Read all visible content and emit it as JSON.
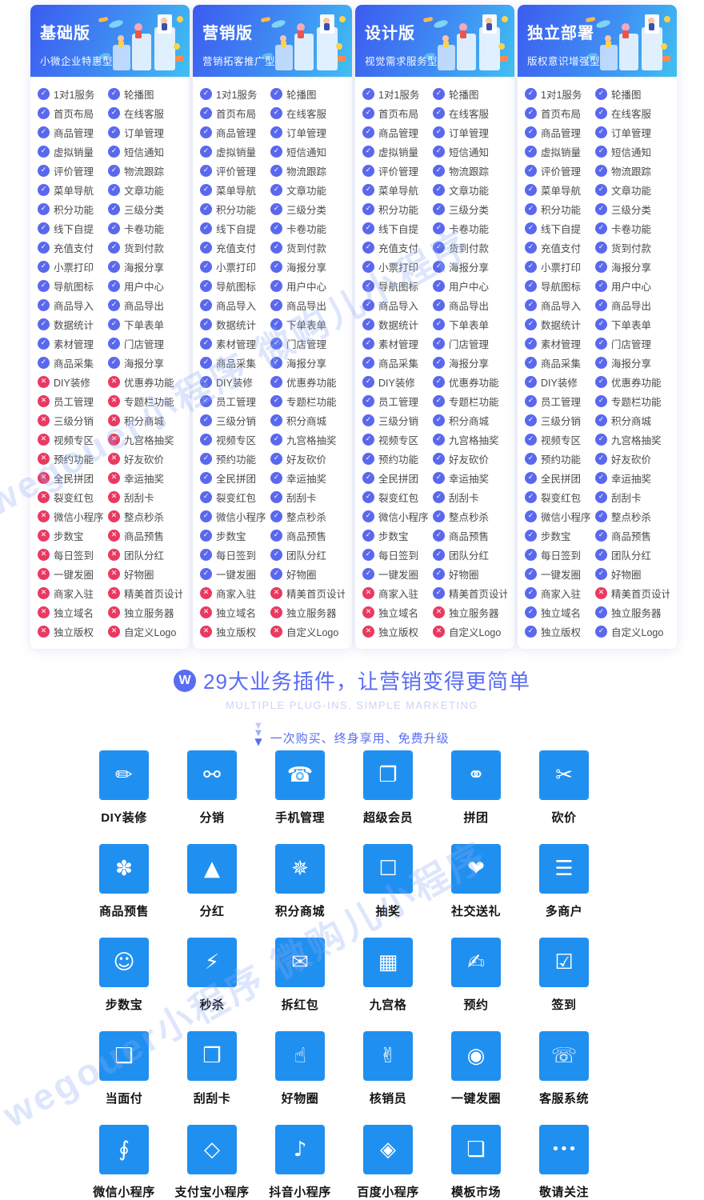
{
  "watermark": {
    "text": "wegouer小程序 微购儿小程序"
  },
  "colors": {
    "check": "#5a68ee",
    "cross": "#ea3961",
    "tile_blue": "#2090f0",
    "accent": "#5a6cf3",
    "header_gradient_start": "#3c5bf0",
    "header_gradient_end": "#41c0f2"
  },
  "plans": [
    {
      "title": "基础版",
      "subtitle": "小微企业特惠型"
    },
    {
      "title": "营销版",
      "subtitle": "营销拓客推广型"
    },
    {
      "title": "设计版",
      "subtitle": "视觉需求服务型"
    },
    {
      "title": "独立部署",
      "subtitle": "版权意识增强型"
    }
  ],
  "feature_rows": [
    [
      "1对1服务",
      "轮播图"
    ],
    [
      "首页布局",
      "在线客服"
    ],
    [
      "商品管理",
      "订单管理"
    ],
    [
      "虚拟销量",
      "短信通知"
    ],
    [
      "评价管理",
      "物流跟踪"
    ],
    [
      "菜单导航",
      "文章功能"
    ],
    [
      "积分功能",
      "三级分类"
    ],
    [
      "线下自提",
      "卡卷功能"
    ],
    [
      "充值支付",
      "货到付款"
    ],
    [
      "小票打印",
      "海报分享"
    ],
    [
      "导航图标",
      "用户中心"
    ],
    [
      "商品导入",
      "商品导出"
    ],
    [
      "数据统计",
      "下单表单"
    ],
    [
      "素材管理",
      "门店管理"
    ],
    [
      "商品采集",
      "海报分享"
    ],
    [
      "DIY装修",
      "优惠券功能"
    ],
    [
      "员工管理",
      "专题栏功能"
    ],
    [
      "三级分销",
      "积分商城"
    ],
    [
      "视频专区",
      "九宫格抽奖"
    ],
    [
      "预约功能",
      "好友砍价"
    ],
    [
      "全民拼团",
      "幸运抽奖"
    ],
    [
      "裂变红包",
      "刮刮卡"
    ],
    [
      "微信小程序",
      "整点秒杀"
    ],
    [
      "步数宝",
      "商品预售"
    ],
    [
      "每日签到",
      "团队分红"
    ],
    [
      "一键发圈",
      "好物圈"
    ],
    [
      "商家入驻",
      "精美首页设计"
    ],
    [
      "独立域名",
      "独立服务器"
    ],
    [
      "独立版权",
      "自定义Logo"
    ]
  ],
  "plan_marks": [
    [
      "11",
      "11",
      "11",
      "11",
      "11",
      "11",
      "11",
      "11",
      "11",
      "11",
      "11",
      "11",
      "11",
      "11",
      "11",
      "00",
      "00",
      "00",
      "00",
      "00",
      "00",
      "00",
      "00",
      "00",
      "00",
      "00",
      "00",
      "00",
      "00"
    ],
    [
      "11",
      "11",
      "11",
      "11",
      "11",
      "11",
      "11",
      "11",
      "11",
      "11",
      "11",
      "11",
      "11",
      "11",
      "11",
      "11",
      "11",
      "11",
      "11",
      "11",
      "11",
      "11",
      "11",
      "11",
      "11",
      "11",
      "00",
      "00",
      "00"
    ],
    [
      "11",
      "11",
      "11",
      "11",
      "11",
      "11",
      "11",
      "11",
      "11",
      "11",
      "11",
      "11",
      "11",
      "11",
      "11",
      "11",
      "11",
      "11",
      "11",
      "11",
      "11",
      "11",
      "11",
      "11",
      "11",
      "11",
      "01",
      "00",
      "00"
    ],
    [
      "11",
      "11",
      "11",
      "11",
      "11",
      "11",
      "11",
      "11",
      "11",
      "11",
      "11",
      "11",
      "11",
      "11",
      "11",
      "11",
      "11",
      "11",
      "11",
      "11",
      "11",
      "11",
      "11",
      "11",
      "11",
      "11",
      "10",
      "11",
      "11"
    ]
  ],
  "plugins_section": {
    "logo_letter": "W",
    "title": "29大业务插件，让营销变得更简单",
    "subtitle": "MULTIPLE PLUG-INS, SIMPLE MARKETING",
    "tagline": "一次购买、终身享用、免费升级",
    "items": [
      {
        "label": "DIY装修",
        "icon": "diy-decorate-icon",
        "glyph": "✏"
      },
      {
        "label": "分销",
        "icon": "distribution-icon",
        "glyph": "⚯"
      },
      {
        "label": "手机管理",
        "icon": "phone-manage-icon",
        "glyph": "☎"
      },
      {
        "label": "超级会员",
        "icon": "super-member-icon",
        "glyph": "❐"
      },
      {
        "label": "拼团",
        "icon": "group-buy-cart-icon",
        "glyph": "⚭"
      },
      {
        "label": "砍价",
        "icon": "bargain-icon",
        "glyph": "✂"
      },
      {
        "label": "商品预售",
        "icon": "presale-gift-icon",
        "glyph": "✽"
      },
      {
        "label": "分红",
        "icon": "dividend-pyramid-icon",
        "glyph": "▲"
      },
      {
        "label": "积分商城",
        "icon": "points-mall-icon",
        "glyph": "✵"
      },
      {
        "label": "抽奖",
        "icon": "lottery-box-icon",
        "glyph": "☐"
      },
      {
        "label": "社交送礼",
        "icon": "social-gift-icon",
        "glyph": "❤"
      },
      {
        "label": "多商户",
        "icon": "multi-merchant-icon",
        "glyph": "☰"
      },
      {
        "label": "步数宝",
        "icon": "step-counter-icon",
        "glyph": "☺"
      },
      {
        "label": "秒杀",
        "icon": "flash-sale-clock-icon",
        "glyph": "⚡"
      },
      {
        "label": "拆红包",
        "icon": "red-packet-icon",
        "glyph": "✉"
      },
      {
        "label": "九宫格",
        "icon": "nine-grid-icon",
        "glyph": "▦"
      },
      {
        "label": "预约",
        "icon": "appointment-note-icon",
        "glyph": "✍"
      },
      {
        "label": "签到",
        "icon": "check-in-calendar-icon",
        "glyph": "☑"
      },
      {
        "label": "当面付",
        "icon": "face-to-face-pay-icon",
        "glyph": "❑"
      },
      {
        "label": "刮刮卡",
        "icon": "scratch-card-icon",
        "glyph": "❒"
      },
      {
        "label": "好物圈",
        "icon": "goods-circle-icon",
        "glyph": "☝"
      },
      {
        "label": "核销员",
        "icon": "verifier-icon",
        "glyph": "✌"
      },
      {
        "label": "一键发圈",
        "icon": "one-key-share-icon",
        "glyph": "◉"
      },
      {
        "label": "客服系统",
        "icon": "customer-service-icon",
        "glyph": "☏"
      },
      {
        "label": "微信小程序",
        "icon": "wechat-miniprogram-icon",
        "glyph": "∮"
      },
      {
        "label": "支付宝小程序",
        "icon": "alipay-miniprogram-icon",
        "glyph": "◇"
      },
      {
        "label": "抖音小程序",
        "icon": "douyin-miniprogram-icon",
        "glyph": "♪"
      },
      {
        "label": "百度小程序",
        "icon": "baidu-miniprogram-icon",
        "glyph": "◈"
      },
      {
        "label": "模板市场",
        "icon": "template-market-icon",
        "glyph": "❏"
      },
      {
        "label": "敬请关注",
        "icon": "more-dots-icon",
        "glyph": "•••"
      }
    ]
  }
}
